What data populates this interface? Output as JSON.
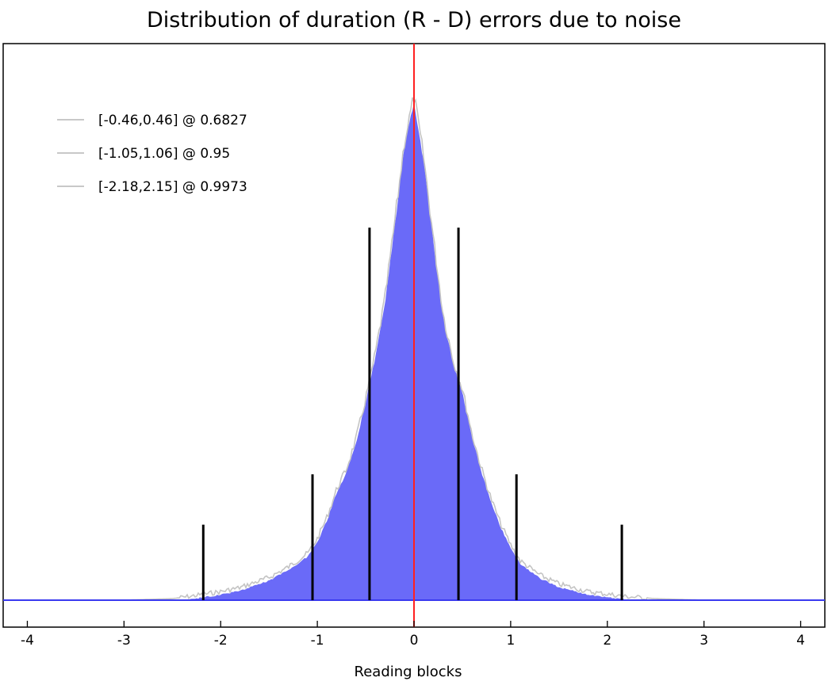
{
  "chart_data": {
    "type": "area",
    "title": "Distribution of duration (R - D) errors due to noise",
    "xlabel": "Reading blocks",
    "ylabel": "",
    "xlim": [
      -4.25,
      4.25
    ],
    "x_ticks": [
      -4,
      -3,
      -2,
      -1,
      0,
      1,
      2,
      3,
      4
    ],
    "tick_labels": [
      "-4",
      "-3",
      "-2",
      "-1",
      "0",
      "1",
      "2",
      "3",
      "4"
    ],
    "legend_placement": "top-left",
    "legend": [
      {
        "label": "[-0.46,0.46] @ 0.6827",
        "color": "#c8c8c8"
      },
      {
        "label": "[-1.05,1.06] @ 0.95",
        "color": "#c8c8c8"
      },
      {
        "label": "[-2.18,2.15] @ 0.9973",
        "color": "#c8c8c8"
      }
    ],
    "histogram_profile": {
      "x": [
        -4.25,
        -3.0,
        -2.5,
        -2.3,
        -2.2,
        -2.0,
        -1.8,
        -1.5,
        -1.3,
        -1.1,
        -1.0,
        -0.9,
        -0.8,
        -0.7,
        -0.6,
        -0.5,
        -0.4,
        -0.3,
        -0.2,
        -0.1,
        0.0,
        0.1,
        0.2,
        0.3,
        0.4,
        0.5,
        0.6,
        0.7,
        0.8,
        0.9,
        1.0,
        1.1,
        1.3,
        1.5,
        1.8,
        2.0,
        2.2,
        2.5,
        3.0,
        4.25
      ],
      "y": [
        0.0,
        0.0,
        0.003,
        0.008,
        0.011,
        0.017,
        0.025,
        0.045,
        0.066,
        0.093,
        0.122,
        0.165,
        0.22,
        0.26,
        0.32,
        0.4,
        0.49,
        0.6,
        0.75,
        0.91,
        1.0,
        0.88,
        0.72,
        0.57,
        0.48,
        0.42,
        0.33,
        0.26,
        0.2,
        0.15,
        0.11,
        0.078,
        0.05,
        0.032,
        0.017,
        0.012,
        0.007,
        0.003,
        0.0,
        0.0
      ]
    },
    "interval_markers": [
      {
        "x": -0.46,
        "height": 0.74
      },
      {
        "x": 0.46,
        "height": 0.74
      },
      {
        "x": -1.05,
        "height": 0.25
      },
      {
        "x": 1.06,
        "height": 0.25
      },
      {
        "x": -2.18,
        "height": 0.15
      },
      {
        "x": 2.15,
        "height": 0.15
      }
    ],
    "reference_line_x": 0,
    "colors": {
      "fill": "#6a6af8",
      "outline": "#c4c4c4",
      "baseline": "#3a3af0",
      "reference": "#ff2020",
      "markers": "#000000"
    }
  }
}
